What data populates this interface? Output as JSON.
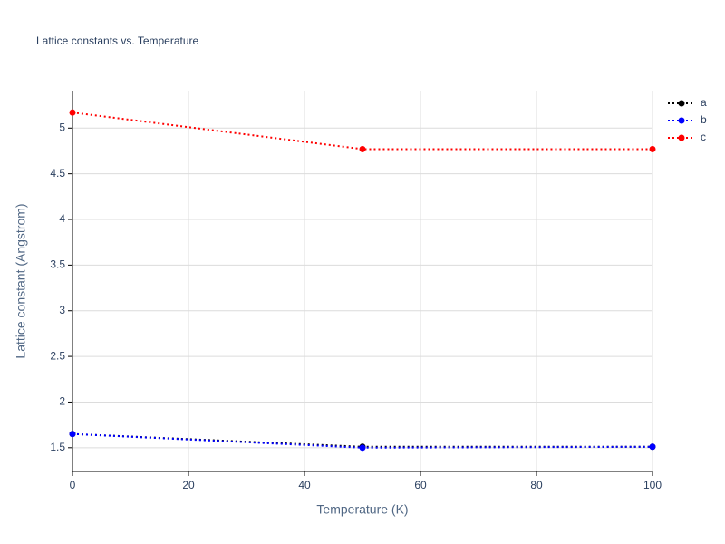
{
  "chart_data": {
    "type": "line",
    "title": "Lattice constants vs. Temperature",
    "x_label": "Temperature (K)",
    "y_label": "Lattice constant (Angstrom)",
    "x": [
      0,
      50,
      100
    ],
    "series": [
      {
        "name": "a",
        "color": "#000000",
        "values": [
          1.65,
          1.51,
          1.51
        ]
      },
      {
        "name": "b",
        "color": "#0000ff",
        "values": [
          1.65,
          1.5,
          1.51
        ]
      },
      {
        "name": "c",
        "color": "#ff0000",
        "values": [
          5.17,
          4.77,
          4.77
        ]
      }
    ],
    "xlim": [
      0,
      100
    ],
    "xticks": [
      0,
      20,
      40,
      60,
      80,
      100
    ],
    "ylim": [
      1.24,
      5.41
    ],
    "yticks": [
      1.5,
      2,
      2.5,
      3,
      3.5,
      4,
      4.5,
      5
    ],
    "grid": true,
    "legend": "right"
  }
}
